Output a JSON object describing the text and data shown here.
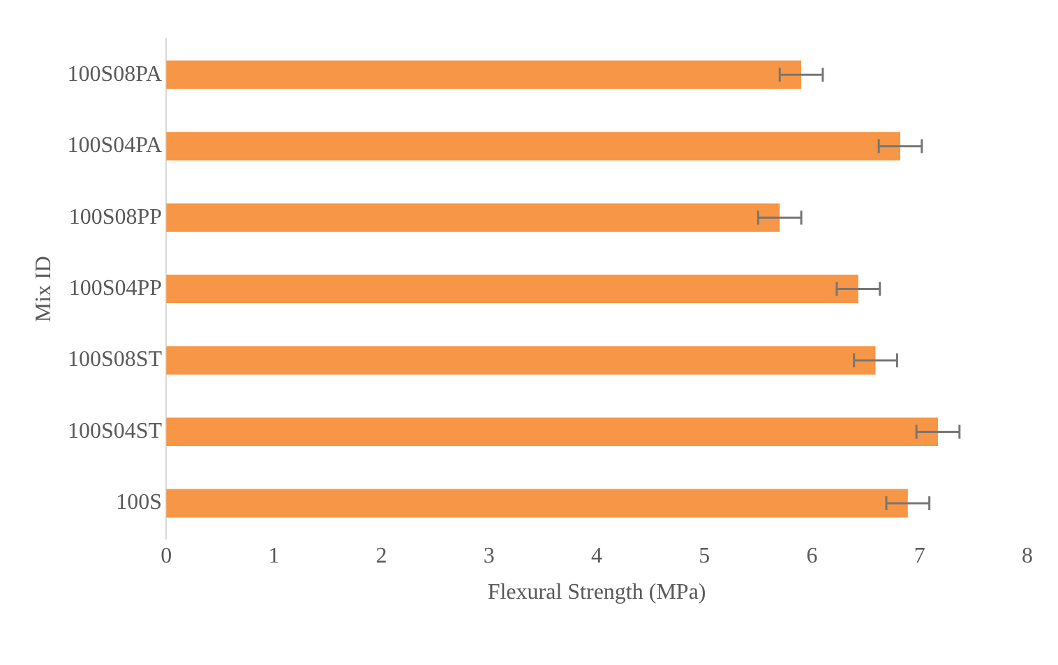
{
  "chart_data": {
    "type": "bar",
    "orientation": "horizontal",
    "xlabel": "Flexural Strength (MPa)",
    "ylabel": "Mix ID",
    "categories": [
      "100S08PA",
      "100S04PA",
      "100S08PP",
      "100S04PP",
      "100S08ST",
      "100S04ST",
      "100S"
    ],
    "values": [
      5.9,
      6.82,
      5.7,
      6.43,
      6.59,
      7.17,
      6.89
    ],
    "errors": [
      0.2,
      0.2,
      0.2,
      0.2,
      0.2,
      0.2,
      0.2
    ],
    "color": "#f79646",
    "xlim": [
      0,
      8
    ],
    "xticks": [
      0,
      1,
      2,
      3,
      4,
      5,
      6,
      7,
      8
    ],
    "grid": false,
    "legend": false
  }
}
